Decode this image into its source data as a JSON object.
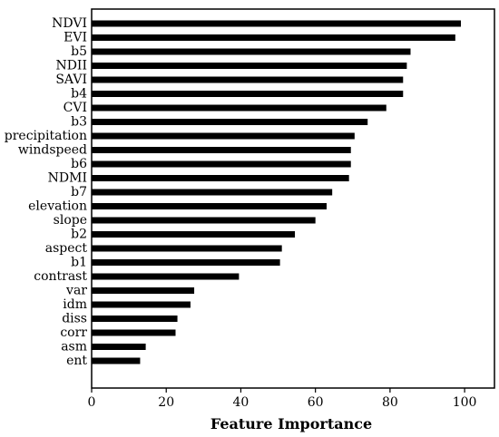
{
  "chart_data": {
    "type": "bar",
    "orientation": "horizontal",
    "categories": [
      "NDVI",
      "EVI",
      "b5",
      "NDII",
      "SAVI",
      "b4",
      "CVI",
      "b3",
      "precipitation",
      "windspeed",
      "b6",
      "NDMI",
      "b7",
      "elevation",
      "slope",
      "b2",
      "aspect",
      "b1",
      "contrast",
      "var",
      "idm",
      "diss",
      "corr",
      "asm",
      "ent"
    ],
    "values": [
      99,
      97.5,
      85.5,
      84.5,
      83.5,
      83.5,
      79,
      74,
      70.5,
      69.5,
      69.5,
      69,
      64.5,
      63,
      60,
      54.5,
      51,
      50.5,
      39.5,
      27.5,
      26.5,
      23,
      22.5,
      14.5,
      13
    ],
    "xlabel": "Feature Importance",
    "ylabel": "",
    "xlim": [
      0,
      108
    ],
    "x_ticks": [
      0,
      20,
      40,
      60,
      80,
      100
    ],
    "grid": false,
    "bar_color": "#000000"
  }
}
